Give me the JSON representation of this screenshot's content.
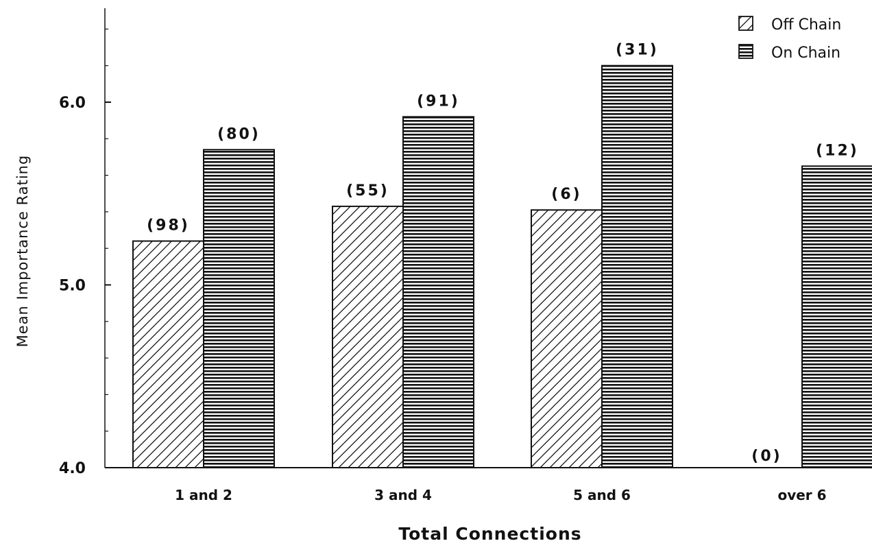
{
  "chart_data": {
    "type": "bar",
    "categories": [
      "1 and 2",
      "3 and 4",
      "5 and 6",
      "over 6"
    ],
    "series": [
      {
        "name": "Off Chain",
        "pattern": "diagonal-hatch",
        "values": [
          5.24,
          5.43,
          5.41,
          null
        ],
        "counts": [
          "(98)",
          "(55)",
          "(6)",
          "(0)"
        ]
      },
      {
        "name": "On Chain",
        "pattern": "horizontal-lines",
        "values": [
          5.74,
          5.92,
          6.2,
          5.65
        ],
        "counts": [
          "(80)",
          "(91)",
          "(31)",
          "(12)"
        ]
      }
    ],
    "xlabel": "Total Connections",
    "ylabel": "Mean Importance Rating",
    "ylim": [
      4.0,
      6.4
    ],
    "yticks": [
      "4.0",
      "5.0",
      "6.0"
    ],
    "legend": "top-right",
    "grid": false,
    "colors": {
      "ink": "#111111",
      "background": "#ffffff"
    }
  }
}
